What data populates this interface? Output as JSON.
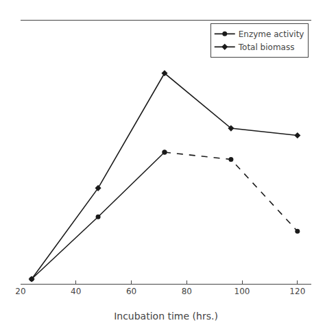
{
  "chart_data": {
    "type": "line",
    "x": [
      24,
      48,
      72,
      96,
      120
    ],
    "series": [
      {
        "name": "Enzyme activity",
        "color": "#1a1a1a",
        "marker": "circle",
        "line_style": "solid",
        "values": [
          2,
          28,
          55,
          null,
          null
        ]
      },
      {
        "color": "#1a1a1a",
        "marker": "circle",
        "line_style": "dashed",
        "values": [
          null,
          null,
          55,
          52,
          22
        ]
      },
      {
        "name": "Total biomass",
        "color": "#1a1a1a",
        "marker": "diamond",
        "line_style": "solid",
        "values": [
          2,
          40,
          88,
          65,
          62
        ]
      }
    ],
    "xlabel": "Incubation time (hrs.)",
    "xlim": [
      20,
      125
    ],
    "xticks": [
      20,
      40,
      60,
      80,
      100,
      120
    ],
    "ylim": [
      0,
      110
    ],
    "tick_labels": "x",
    "grid": false,
    "legend": "upper right"
  }
}
